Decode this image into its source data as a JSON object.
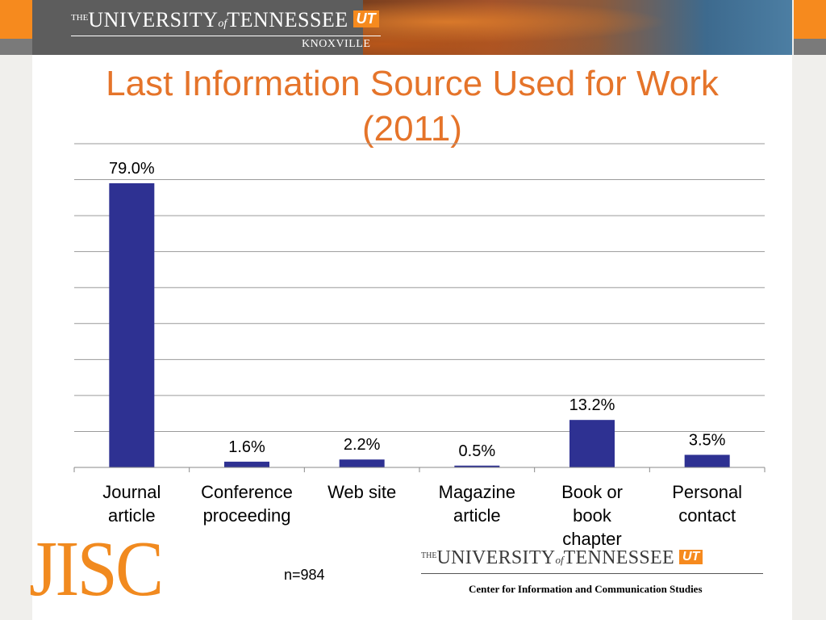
{
  "header": {
    "logo_the": "THE",
    "logo_university": "UNIVERSITY",
    "logo_of": "of",
    "logo_tennessee": "TENNESSEE",
    "logo_mark": "UT",
    "logo_subtitle": "KNOXVILLE"
  },
  "slide": {
    "title_line1": "Last Information Source Used for Work",
    "title_line2": "(2011)"
  },
  "chart_data": {
    "type": "bar",
    "title": "Last Information Source Used for Work (2011)",
    "categories": [
      [
        "Journal",
        "article"
      ],
      [
        "Conference",
        "proceeding"
      ],
      [
        "Web site"
      ],
      [
        "Magazine",
        "article"
      ],
      [
        "Book or",
        "book",
        "chapter"
      ],
      [
        "Personal",
        "contact"
      ]
    ],
    "values": [
      79.0,
      1.6,
      2.2,
      0.5,
      13.2,
      3.5
    ],
    "data_labels": [
      "79.0%",
      "1.6%",
      "2.2%",
      "0.5%",
      "13.2%",
      "3.5%"
    ],
    "ylim": [
      0,
      90
    ],
    "y_gridline_step": 10,
    "grid": true,
    "y_tick_labels_shown": false,
    "bar_color": "#2e3192",
    "xlabel": "",
    "ylabel": ""
  },
  "footer": {
    "note": "n=984",
    "jisc_logo": "JISC",
    "logo_the": "THE",
    "logo_university": "UNIVERSITY",
    "logo_of": "of",
    "logo_tennessee": "TENNESSEE",
    "logo_mark": "UT",
    "center_name": "Center for Information and Communication Studies"
  },
  "colors": {
    "accent_orange": "#f68a1e",
    "title_orange": "#e5742a",
    "bar_navy": "#2e3192",
    "header_grey": "#5d5d5d"
  }
}
